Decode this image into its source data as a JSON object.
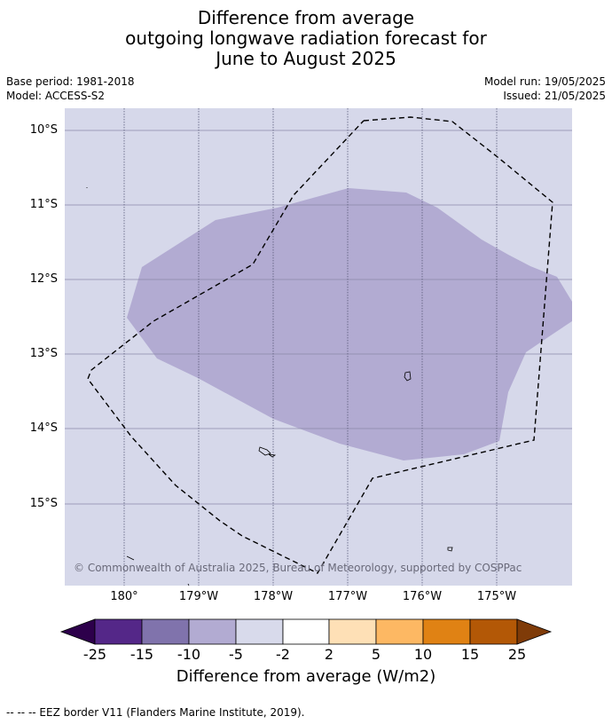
{
  "title": {
    "line1": "Difference from average",
    "line2": "outgoing longwave radiation forecast for",
    "line3": "June to August 2025"
  },
  "meta": {
    "base_period": "Base period: 1981-2018",
    "model": "Model: ACCESS-S2",
    "model_run": "Model run: 19/05/2025",
    "issued": "Issued: 21/05/2025"
  },
  "map": {
    "lat_labels": [
      "10°S",
      "11°S",
      "12°S",
      "13°S",
      "14°S",
      "15°S"
    ],
    "lon_labels": [
      "180°",
      "179°W",
      "178°W",
      "177°W",
      "176°W",
      "175°W"
    ],
    "copyright": "© Commonwealth of Australia 2025, Bureau of Meteorology, supported by COSPPac",
    "colors": {
      "background": "#d6d8ea",
      "anomaly": "#b2abd2",
      "eez_line": "#000000"
    }
  },
  "colorbar": {
    "tick_labels": [
      "-25",
      "-15",
      "-10",
      "-5",
      "-2",
      "2",
      "5",
      "10",
      "15",
      "25"
    ],
    "colors": [
      "#2d004b",
      "#542788",
      "#8073ac",
      "#b2abd2",
      "#d8daeb",
      "#ffffff",
      "#fee0b6",
      "#fdb863",
      "#e08214",
      "#b35806",
      "#7f3b08"
    ],
    "label": "Difference from average (W/m2)"
  },
  "footer": "--  --  -- EEZ border V11 (Flanders Marine Institute, 2019)."
}
